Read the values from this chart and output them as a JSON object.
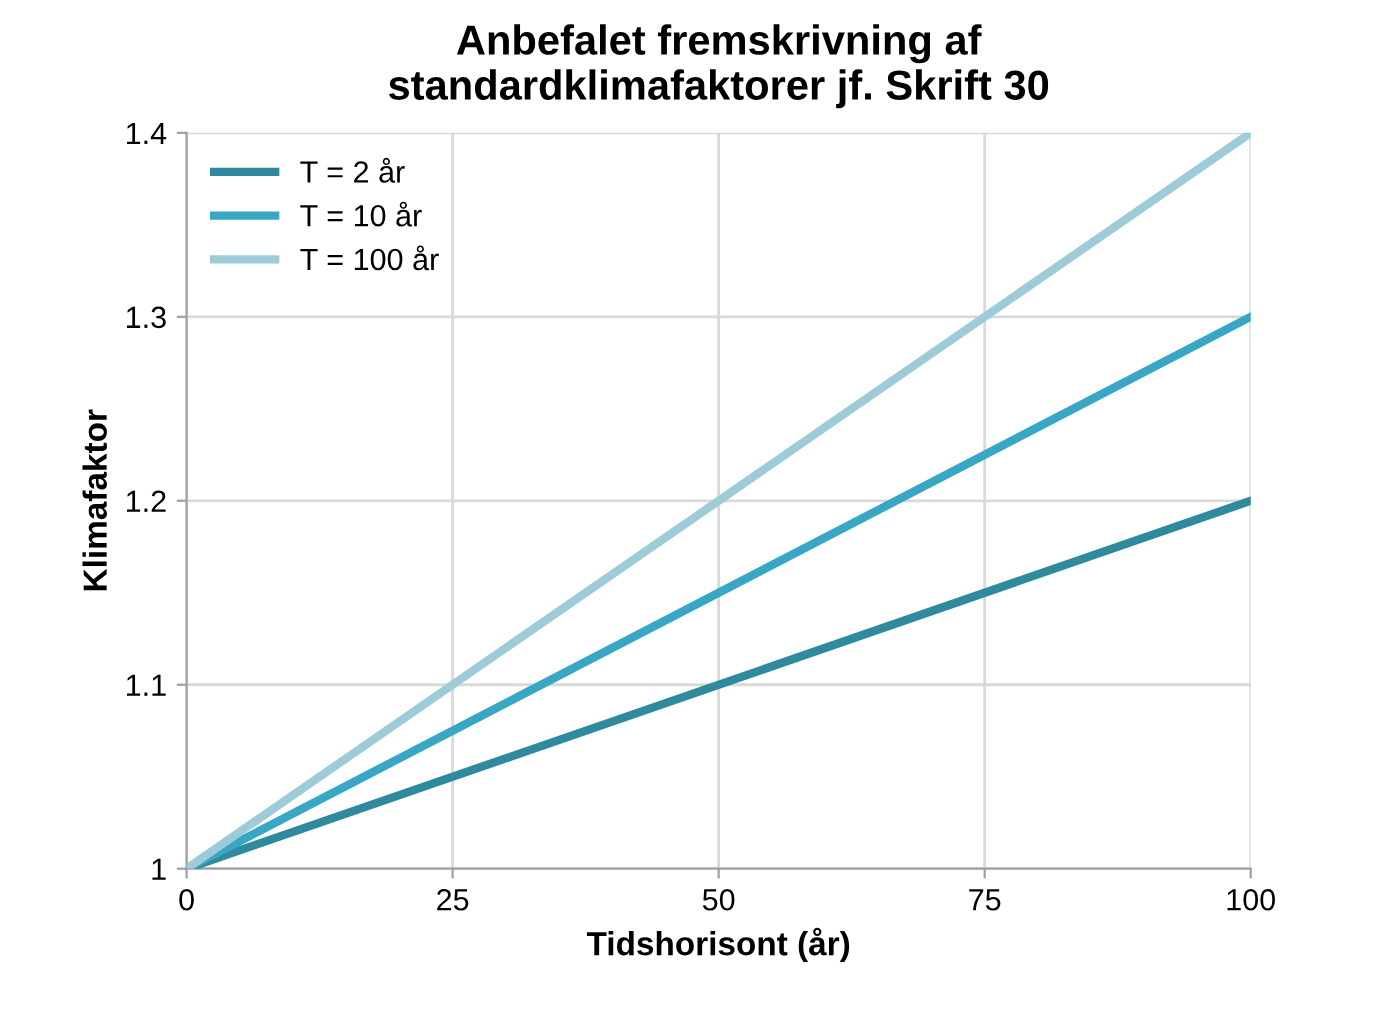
{
  "chart_data": {
    "type": "line",
    "title": "Anbefalet fremskrivning af\nstandardklimafaktorer jf. Skrift 30",
    "xlabel": "Tidshorisont (år)",
    "ylabel": "Klimafaktor",
    "x": [
      0,
      100
    ],
    "series": [
      {
        "name": "T = 2 år",
        "color": "#2f8a9e",
        "values": [
          1,
          1.2
        ]
      },
      {
        "name": "T = 10 år",
        "color": "#38a7c6",
        "values": [
          1,
          1.3
        ]
      },
      {
        "name": "T = 100 år",
        "color": "#9ecbd8",
        "values": [
          1,
          1.4
        ]
      }
    ],
    "xlim": [
      0,
      100
    ],
    "xticks": [
      0,
      25,
      50,
      75,
      100
    ],
    "ylim": [
      1,
      1.4
    ],
    "yticks": [
      1,
      1.1,
      1.2,
      1.3,
      1.4
    ],
    "grid": true,
    "legend": "top left",
    "marker": "none",
    "line_style": "solid"
  }
}
